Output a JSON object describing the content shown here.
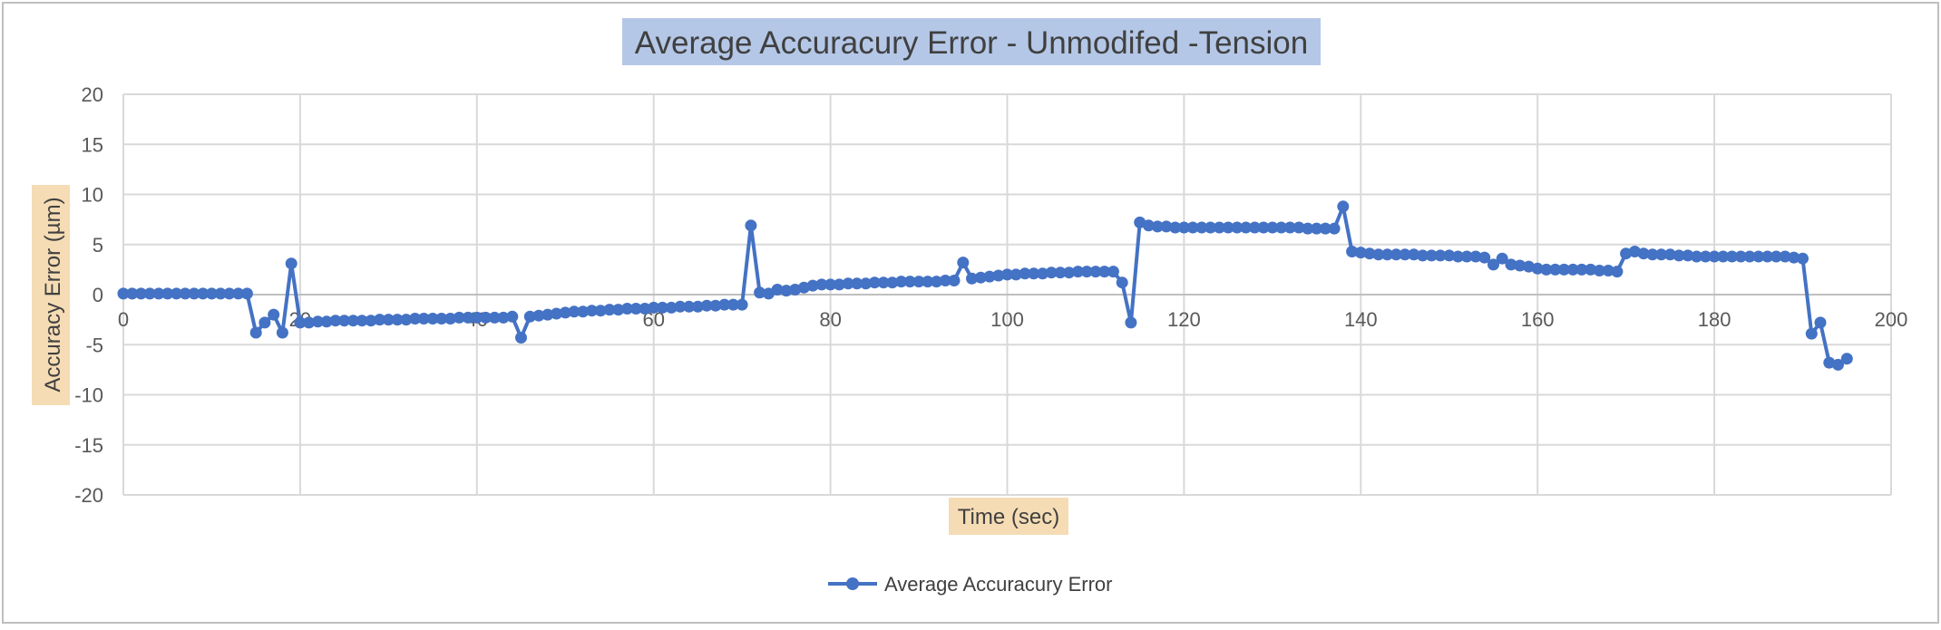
{
  "chart_data": {
    "type": "line",
    "title": "Average Accuracury Error - Unmodifed -Tension",
    "xlabel": "Time (sec)",
    "ylabel": "Accuracy Error (µm)",
    "xlim": [
      0,
      200
    ],
    "ylim": [
      -20,
      20
    ],
    "x_ticks": [
      "0",
      "20",
      "40",
      "60",
      "80",
      "100",
      "120",
      "140",
      "160",
      "180",
      "200"
    ],
    "y_ticks": [
      "20",
      "15",
      "10",
      "5",
      "0",
      "-5",
      "-10",
      "-15",
      "-20"
    ],
    "grid": true,
    "legend_position": "bottom",
    "series": [
      {
        "name": "Average Accuracury Error",
        "color": "#4472C4",
        "x": [
          0,
          1,
          2,
          3,
          4,
          5,
          6,
          7,
          8,
          9,
          10,
          11,
          12,
          13,
          14,
          15,
          16,
          17,
          18,
          19,
          20,
          21,
          22,
          23,
          24,
          25,
          26,
          27,
          28,
          29,
          30,
          31,
          32,
          33,
          34,
          35,
          36,
          37,
          38,
          39,
          40,
          41,
          42,
          43,
          44,
          45,
          46,
          47,
          48,
          49,
          50,
          51,
          52,
          53,
          54,
          55,
          56,
          57,
          58,
          59,
          60,
          61,
          62,
          63,
          64,
          65,
          66,
          67,
          68,
          69,
          70,
          71,
          72,
          73,
          74,
          75,
          76,
          77,
          78,
          79,
          80,
          81,
          82,
          83,
          84,
          85,
          86,
          87,
          88,
          89,
          90,
          91,
          92,
          93,
          94,
          95,
          96,
          97,
          98,
          99,
          100,
          101,
          102,
          103,
          104,
          105,
          106,
          107,
          108,
          109,
          110,
          111,
          112,
          113,
          114,
          115,
          116,
          117,
          118,
          119,
          120,
          121,
          122,
          123,
          124,
          125,
          126,
          127,
          128,
          129,
          130,
          131,
          132,
          133,
          134,
          135,
          136,
          137,
          138,
          139,
          140,
          141,
          142,
          143,
          144,
          145,
          146,
          147,
          148,
          149,
          150,
          151,
          152,
          153,
          154,
          155,
          156,
          157,
          158,
          159,
          160,
          161,
          162,
          163,
          164,
          165,
          166,
          167,
          168,
          169,
          170,
          171,
          172,
          173,
          174,
          175,
          176,
          177,
          178,
          179,
          180,
          181,
          182,
          183,
          184,
          185,
          186,
          187,
          188,
          189,
          190,
          191,
          192,
          193,
          194,
          195
        ],
        "y": [
          0.1,
          0.1,
          0.1,
          0.1,
          0.1,
          0.1,
          0.1,
          0.1,
          0.1,
          0.1,
          0.1,
          0.1,
          0.1,
          0.1,
          0.1,
          -3.8,
          -2.8,
          -2,
          -3.8,
          3.1,
          -2.8,
          -2.8,
          -2.7,
          -2.7,
          -2.6,
          -2.6,
          -2.6,
          -2.6,
          -2.6,
          -2.5,
          -2.5,
          -2.5,
          -2.5,
          -2.4,
          -2.4,
          -2.4,
          -2.4,
          -2.4,
          -2.3,
          -2.3,
          -2.3,
          -2.3,
          -2.3,
          -2.3,
          -2.2,
          -4.3,
          -2.2,
          -2.1,
          -2,
          -1.9,
          -1.8,
          -1.7,
          -1.7,
          -1.6,
          -1.6,
          -1.5,
          -1.5,
          -1.4,
          -1.4,
          -1.4,
          -1.3,
          -1.3,
          -1.3,
          -1.2,
          -1.2,
          -1.2,
          -1.1,
          -1.1,
          -1,
          -1,
          -1,
          6.9,
          0.2,
          0.1,
          0.5,
          0.4,
          0.5,
          0.7,
          0.9,
          1,
          1,
          1,
          1.1,
          1.1,
          1.1,
          1.2,
          1.2,
          1.2,
          1.3,
          1.3,
          1.3,
          1.3,
          1.3,
          1.4,
          1.4,
          3.2,
          1.6,
          1.7,
          1.8,
          1.9,
          2,
          2,
          2.1,
          2.1,
          2.1,
          2.2,
          2.2,
          2.2,
          2.3,
          2.3,
          2.3,
          2.3,
          2.3,
          1.2,
          -2.8,
          7.2,
          6.9,
          6.8,
          6.8,
          6.7,
          6.7,
          6.7,
          6.7,
          6.7,
          6.7,
          6.7,
          6.7,
          6.7,
          6.7,
          6.7,
          6.7,
          6.7,
          6.7,
          6.7,
          6.6,
          6.6,
          6.6,
          6.6,
          8.8,
          4.3,
          4.2,
          4.1,
          4,
          4,
          4,
          4,
          4,
          3.9,
          3.9,
          3.9,
          3.9,
          3.8,
          3.8,
          3.8,
          3.7,
          3,
          3.6,
          3,
          2.9,
          2.8,
          2.6,
          2.5,
          2.5,
          2.5,
          2.5,
          2.5,
          2.5,
          2.4,
          2.4,
          2.3,
          4.1,
          4.3,
          4.1,
          4,
          4,
          4,
          3.9,
          3.9,
          3.8,
          3.8,
          3.8,
          3.8,
          3.8,
          3.8,
          3.8,
          3.8,
          3.8,
          3.8,
          3.8,
          3.7,
          3.6,
          -3.9,
          -2.8,
          -6.8,
          -7,
          -6.4
        ]
      }
    ]
  }
}
